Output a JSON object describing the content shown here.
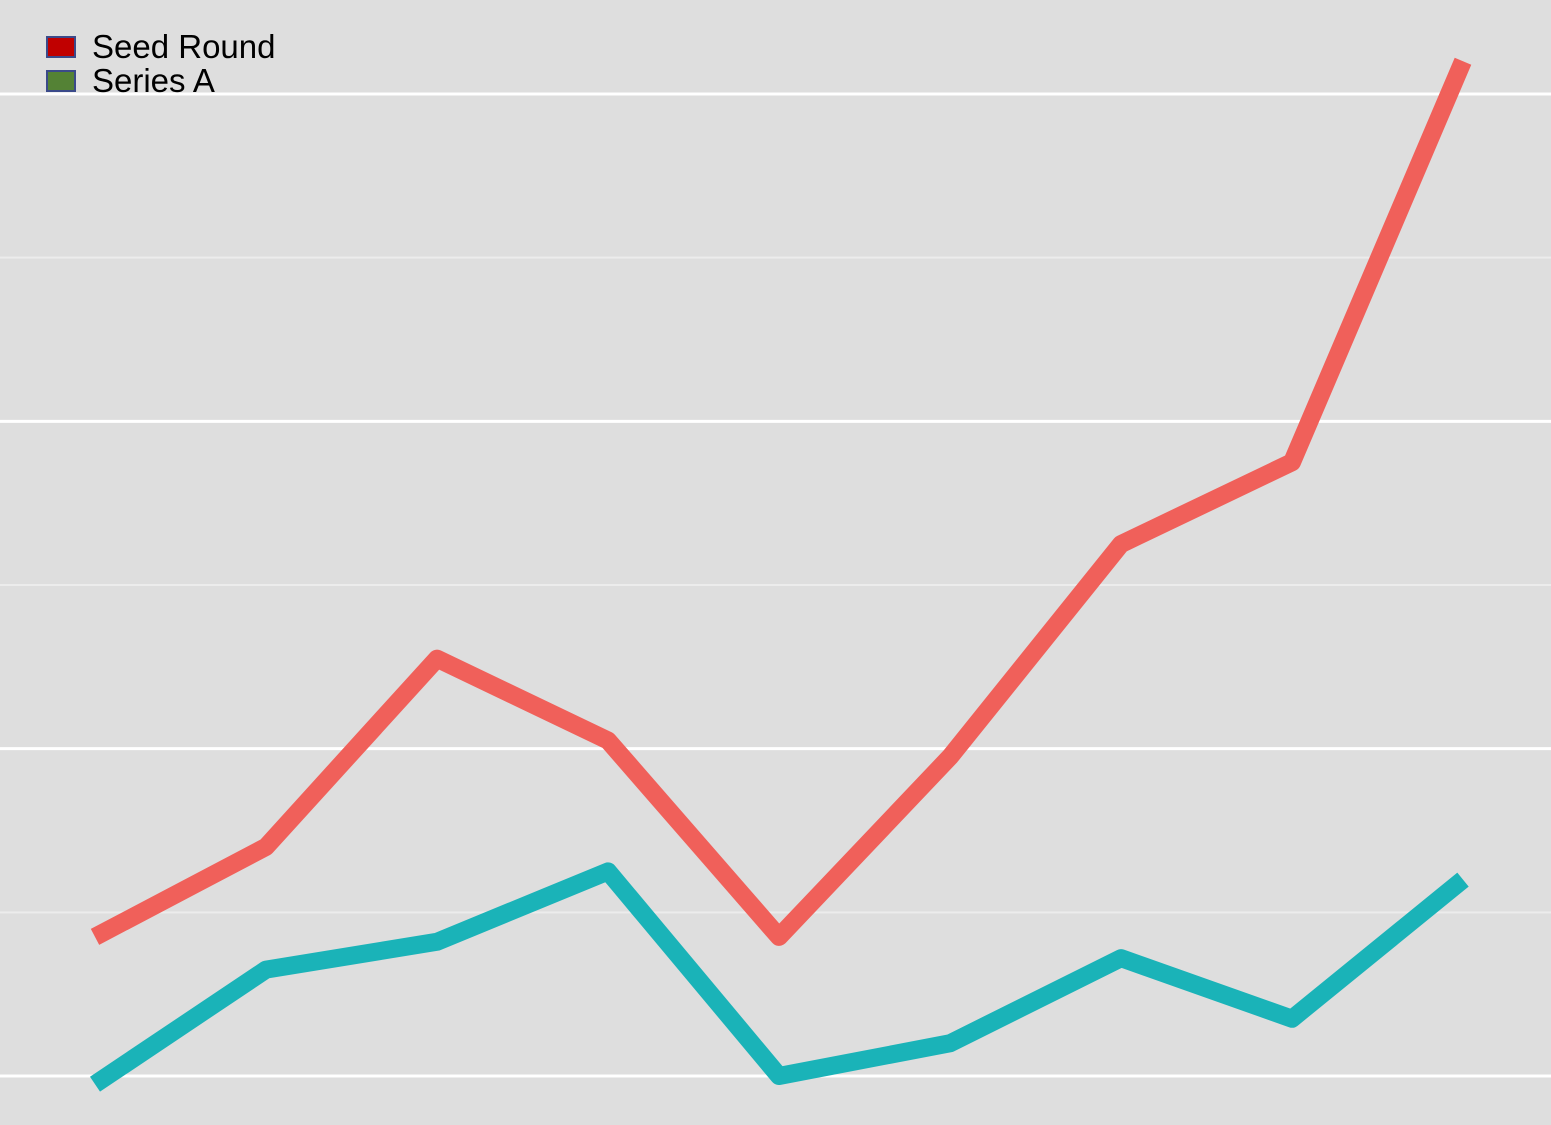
{
  "chart_data": {
    "type": "line",
    "title": "",
    "xlabel": "",
    "ylabel": "",
    "x": [
      1,
      2,
      3,
      4,
      5,
      6,
      7,
      8,
      9
    ],
    "ylim": [
      0,
      6.3
    ],
    "major_gridlines": [
      0,
      2,
      4,
      6
    ],
    "minor_gridlines": [
      1,
      3,
      5
    ],
    "grid": true,
    "legend_position": "top-left",
    "background": "#dedede",
    "series": [
      {
        "name": "Seed Round",
        "legend_swatch_color": "#c00000",
        "line_color": "#f0605a",
        "values": [
          0.85,
          1.4,
          2.55,
          2.05,
          0.85,
          1.95,
          3.25,
          3.75,
          6.2
        ]
      },
      {
        "name": "Series A",
        "legend_swatch_color": "#548235",
        "line_color": "#1ab3b8",
        "values": [
          -0.05,
          0.65,
          0.82,
          1.25,
          0.0,
          0.2,
          0.72,
          0.35,
          1.2
        ]
      }
    ]
  }
}
